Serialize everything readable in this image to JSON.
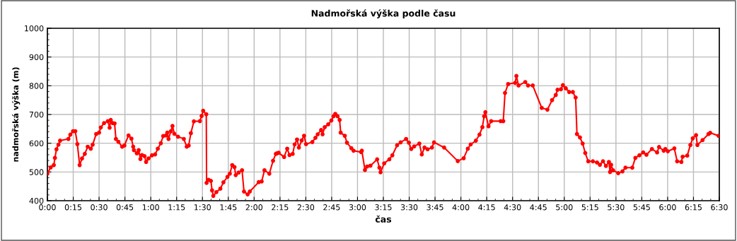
{
  "chart_data": {
    "type": "line",
    "title": "Nadmořská výška podle času",
    "xlabel": "čas",
    "ylabel": "nadmořská výška (m)",
    "x": [
      0,
      0.032,
      0.062,
      0.073,
      0.088,
      0.107,
      0.123,
      0.203,
      0.222,
      0.248,
      0.27,
      0.29,
      0.312,
      0.335,
      0.362,
      0.39,
      0.42,
      0.438,
      0.472,
      0.5,
      0.517,
      0.548,
      0.585,
      0.602,
      0.613,
      0.632,
      0.65,
      0.663,
      0.687,
      0.723,
      0.745,
      0.785,
      0.813,
      0.83,
      0.837,
      0.865,
      0.883,
      0.9,
      0.915,
      0.94,
      0.955,
      0.978,
      1.012,
      1.042,
      1.068,
      1.097,
      1.12,
      1.148,
      1.16,
      1.172,
      1.195,
      1.21,
      1.228,
      1.263,
      1.32,
      1.348,
      1.367,
      1.388,
      1.417,
      1.475,
      1.492,
      1.507,
      1.537,
      1.54,
      1.558,
      1.582,
      1.593,
      1.605,
      1.635,
      1.673,
      1.703,
      1.742,
      1.765,
      1.788,
      1.81,
      1.822,
      1.85,
      1.883,
      1.902,
      1.937,
      1.958,
      2.045,
      2.073,
      2.1,
      2.147,
      2.183,
      2.21,
      2.222,
      2.237,
      2.29,
      2.32,
      2.342,
      2.373,
      2.392,
      2.415,
      2.433,
      2.46,
      2.483,
      2.502,
      2.563,
      2.593,
      2.615,
      2.648,
      2.662,
      2.683,
      2.717,
      2.747,
      2.768,
      2.785,
      2.807,
      2.827,
      2.837,
      2.877,
      2.898,
      2.94,
      2.962,
      3.035,
      3.042,
      3.072,
      3.093,
      3.125,
      3.19,
      3.212,
      3.223,
      3.258,
      3.308,
      3.337,
      3.383,
      3.417,
      3.47,
      3.497,
      3.52,
      3.548,
      3.598,
      3.622,
      3.648,
      3.678,
      3.72,
      3.74,
      3.838,
      3.97,
      4.027,
      4.067,
      4.095,
      4.145,
      4.18,
      4.208,
      4.225,
      4.237,
      4.267,
      4.293,
      4.385,
      4.41,
      4.427,
      4.457,
      4.525,
      4.537,
      4.558,
      4.623,
      4.65,
      4.695,
      4.782,
      4.837,
      4.882,
      4.918,
      4.935,
      4.968,
      4.987,
      5.015,
      5.048,
      5.083,
      5.11,
      5.123,
      5.152,
      5.178,
      5.203,
      5.232,
      5.277,
      5.317,
      5.345,
      5.375,
      5.403,
      5.432,
      5.443,
      5.453,
      5.472,
      5.522,
      5.563,
      5.592,
      5.658,
      5.688,
      5.727,
      5.763,
      5.795,
      5.848,
      5.898,
      5.917,
      5.962,
      5.978,
      6.002,
      6.065,
      6.092,
      6.133,
      6.145,
      6.19,
      6.22,
      6.243,
      6.275,
      6.288,
      6.338,
      6.395,
      6.412,
      6.493
    ],
    "series": [
      {
        "color": "#ff0000",
        "values": [
          494,
          516,
          524,
          549,
          579,
          595,
          609,
          615,
          630,
          642,
          642,
          597,
          524,
          547,
          563,
          588,
          581,
          595,
          632,
          637,
          655,
          670,
          677,
          654,
          681,
          670,
          669,
          615,
          605,
          588,
          592,
          627,
          616,
          588,
          576,
          565,
          576,
          545,
          559,
          555,
          535,
          547,
          558,
          561,
          581,
          600,
          625,
          627,
          637,
          615,
          642,
          660,
          633,
          623,
          615,
          588,
          592,
          635,
          676,
          677,
          695,
          713,
          701,
          462,
          473,
          469,
          436,
          417,
          430,
          442,
          464,
          483,
          494,
          524,
          517,
          489,
          498,
          506,
          432,
          422,
          432,
          465,
          467,
          506,
          494,
          539,
          563,
          565,
          567,
          552,
          581,
          559,
          563,
          596,
          613,
          585,
          610,
          626,
          597,
          604,
          619,
          631,
          646,
          631,
          656,
          666,
          679,
          694,
          702,
          694,
          681,
          637,
          626,
          602,
          583,
          574,
          569,
          574,
          507,
          519,
          522,
          544,
          515,
          499,
          530,
          544,
          558,
          593,
          603,
          615,
          602,
          580,
          589,
          599,
          561,
          585,
          579,
          585,
          603,
          585,
          538,
          548,
          581,
          596,
          609,
          630,
          656,
          694,
          708,
          659,
          677,
          677,
          677,
          775,
          806,
          810,
          834,
          801,
          813,
          801,
          801,
          723,
          717,
          750,
          768,
          786,
          788,
          802,
          791,
          778,
          778,
          759,
          632,
          620,
          599,
          566,
          537,
          537,
          533,
          525,
          537,
          521,
          535,
          500,
          525,
          506,
          496,
          502,
          515,
          515,
          549,
          558,
          568,
          560,
          580,
          568,
          587,
          574,
          580,
          572,
          582,
          537,
          535,
          553,
          557,
          594,
          617,
          628,
          594,
          611,
          632,
          636,
          626
        ]
      }
    ],
    "xlim": [
      0,
      6.5
    ],
    "xticks": [
      {
        "value": 0,
        "label": "0:00"
      },
      {
        "value": 0.25,
        "label": "0:15"
      },
      {
        "value": 0.5,
        "label": "0:30"
      },
      {
        "value": 0.75,
        "label": "0:45"
      },
      {
        "value": 1,
        "label": "1:00"
      },
      {
        "value": 1.25,
        "label": "1:15"
      },
      {
        "value": 1.5,
        "label": "1:30"
      },
      {
        "value": 1.75,
        "label": "1:45"
      },
      {
        "value": 2,
        "label": "2:00"
      },
      {
        "value": 2.25,
        "label": "2:15"
      },
      {
        "value": 2.5,
        "label": "2:30"
      },
      {
        "value": 2.75,
        "label": "2:45"
      },
      {
        "value": 3,
        "label": "3:00"
      },
      {
        "value": 3.25,
        "label": "3:15"
      },
      {
        "value": 3.5,
        "label": "3:30"
      },
      {
        "value": 3.75,
        "label": "3:45"
      },
      {
        "value": 4,
        "label": "4:00"
      },
      {
        "value": 4.25,
        "label": "4:15"
      },
      {
        "value": 4.5,
        "label": "4:30"
      },
      {
        "value": 4.75,
        "label": "4:45"
      },
      {
        "value": 5,
        "label": "5:00"
      },
      {
        "value": 5.25,
        "label": "5:15"
      },
      {
        "value": 5.5,
        "label": "5:30"
      },
      {
        "value": 5.75,
        "label": "5:45"
      },
      {
        "value": 6,
        "label": "6:00"
      },
      {
        "value": 6.25,
        "label": "6:15"
      },
      {
        "value": 6.5,
        "label": "6:30"
      }
    ],
    "ylim": [
      400,
      1000
    ],
    "yticks": [
      400,
      500,
      600,
      700,
      800,
      900,
      1000
    ],
    "grid": true,
    "marker": "circle",
    "line_style": "solid"
  }
}
